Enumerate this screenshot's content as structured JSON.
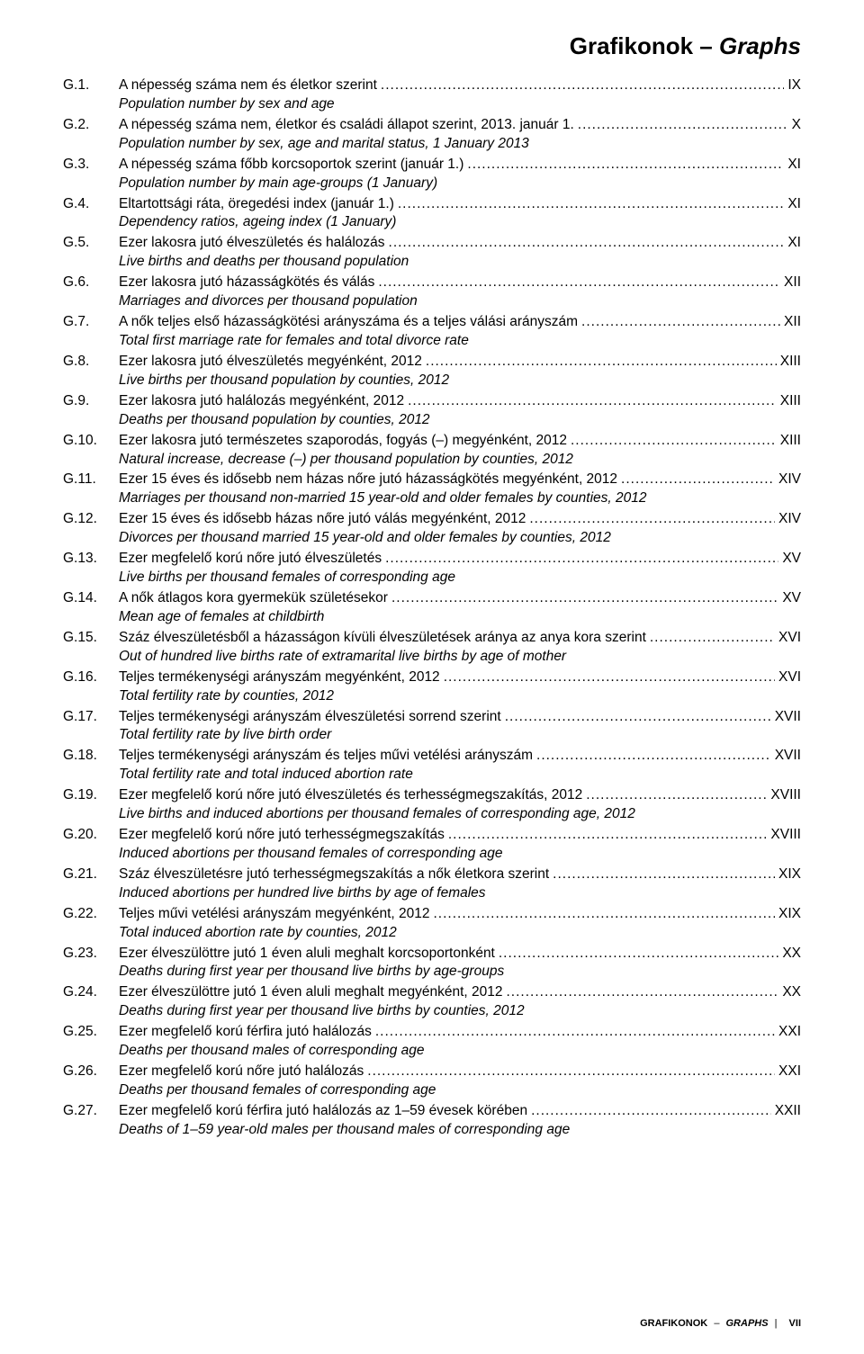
{
  "title_hu": "Grafikonok",
  "title_sep": " – ",
  "title_en": "Graphs",
  "leader_char": ".",
  "entries": [
    {
      "num": "G.1.",
      "hu": "A népesség száma nem és életkor szerint",
      "page": "IX",
      "en": "Population number by sex and age"
    },
    {
      "num": "G.2.",
      "hu": "A népesség száma nem, életkor és családi állapot szerint, 2013. január 1.",
      "page": "X",
      "en": "Population number by sex, age and marital status, 1 January 2013"
    },
    {
      "num": "G.3.",
      "hu": "A népesség száma főbb korcsoportok szerint (január 1.)",
      "page": "XI",
      "en": "Population number by main age-groups (1 January)"
    },
    {
      "num": "G.4.",
      "hu": "Eltartottsági ráta, öregedési index (január 1.)",
      "page": "XI",
      "en": "Dependency ratios, ageing index (1 January)"
    },
    {
      "num": "G.5.",
      "hu": "Ezer lakosra jutó élveszületés és halálozás",
      "page": "XI",
      "en": "Live births and deaths per thousand population"
    },
    {
      "num": "G.6.",
      "hu": "Ezer lakosra jutó házasságkötés és válás",
      "page": "XII",
      "en": "Marriages and divorces per thousand population"
    },
    {
      "num": "G.7.",
      "hu": "A nők teljes első házasságkötési arányszáma és a teljes válási arányszám",
      "page": "XII",
      "en": "Total first marriage rate for females and total divorce rate"
    },
    {
      "num": "G.8.",
      "hu": "Ezer lakosra jutó élveszületés megyénként, 2012",
      "page": "XIII",
      "en": "Live births per thousand population by counties, 2012"
    },
    {
      "num": "G.9.",
      "hu": "Ezer lakosra jutó halálozás megyénként, 2012",
      "page": "XIII",
      "en": "Deaths per thousand population by counties, 2012"
    },
    {
      "num": "G.10.",
      "hu": "Ezer lakosra jutó természetes szaporodás, fogyás (–) megyénként, 2012",
      "page": "XIII",
      "en": "Natural increase, decrease (–) per thousand population by counties, 2012"
    },
    {
      "num": "G.11.",
      "hu": "Ezer 15 éves és idősebb nem házas nőre jutó házasságkötés megyénként, 2012",
      "page": "XIV",
      "en": "Marriages per thousand non-married 15 year-old and older females by counties, 2012"
    },
    {
      "num": "G.12.",
      "hu": "Ezer 15 éves és idősebb házas nőre jutó válás megyénként, 2012",
      "page": "XIV",
      "en": "Divorces per thousand married 15 year-old and older females by counties, 2012"
    },
    {
      "num": "G.13.",
      "hu": "Ezer megfelelő korú nőre jutó élveszületés",
      "page": "XV",
      "en": "Live births per thousand females of corresponding age"
    },
    {
      "num": "G.14.",
      "hu": "A nők átlagos kora gyermekük születésekor",
      "page": "XV",
      "en": "Mean age of females at childbirth"
    },
    {
      "num": "G.15.",
      "hu": "Száz élveszületésből a házasságon kívüli élveszületések aránya az anya kora szerint",
      "page": "XVI",
      "en": "Out of hundred live births rate of extramarital live births by age of mother"
    },
    {
      "num": "G.16.",
      "hu": "Teljes termékenységi arányszám megyénként, 2012",
      "page": "XVI",
      "en": "Total fertility rate by counties, 2012"
    },
    {
      "num": "G.17.",
      "hu": "Teljes termékenységi arányszám élveszületési sorrend szerint",
      "page": "XVII",
      "en": "Total fertility rate by live birth order"
    },
    {
      "num": "G.18.",
      "hu": "Teljes termékenységi arányszám és teljes művi vetélési arányszám",
      "page": "XVII",
      "en": "Total fertility rate and total induced abortion rate"
    },
    {
      "num": "G.19.",
      "hu": "Ezer megfelelő korú nőre jutó élveszületés és terhességmegszakítás, 2012",
      "page": "XVIII",
      "en": "Live births and induced abortions per thousand females of corresponding age, 2012"
    },
    {
      "num": "G.20.",
      "hu": "Ezer megfelelő korú nőre jutó terhességmegszakítás",
      "page": "XVIII",
      "en": "Induced abortions per thousand females of corresponding age"
    },
    {
      "num": "G.21.",
      "hu": "Száz élveszületésre jutó terhességmegszakítás a nők életkora szerint",
      "page": "XIX",
      "en": "Induced abortions per hundred live births by age of females"
    },
    {
      "num": "G.22.",
      "hu": "Teljes művi vetélési arányszám megyénként, 2012",
      "page": "XIX",
      "en": "Total induced abortion rate by counties, 2012"
    },
    {
      "num": "G.23.",
      "hu": "Ezer élveszülöttre jutó 1 éven aluli meghalt korcsoportonként",
      "page": "XX",
      "en": "Deaths during first year per thousand live births by age-groups"
    },
    {
      "num": "G.24.",
      "hu": "Ezer élveszülöttre jutó 1 éven aluli meghalt megyénként, 2012",
      "page": "XX",
      "en": "Deaths during first year per thousand live births by counties, 2012"
    },
    {
      "num": "G.25.",
      "hu": "Ezer megfelelő korú férfira jutó halálozás",
      "page": "XXI",
      "en": "Deaths per thousand males of corresponding age"
    },
    {
      "num": "G.26.",
      "hu": "Ezer megfelelő korú nőre jutó halálozás",
      "page": "XXI",
      "en": "Deaths per thousand females of corresponding age"
    },
    {
      "num": "G.27.",
      "hu": "Ezer megfelelő korú férfira jutó halálozás az 1–59 évesek körében",
      "page": "XXII",
      "en": "Deaths of 1–59 year-old males per thousand males of corresponding age"
    }
  ],
  "footer_hu": "GRAFIKONOK",
  "footer_sep": "–",
  "footer_en": "GRAPHS",
  "footer_page": "VII"
}
